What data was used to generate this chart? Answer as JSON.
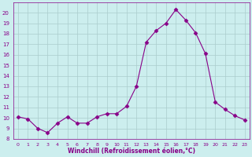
{
  "x": [
    0,
    1,
    2,
    3,
    4,
    5,
    6,
    7,
    8,
    9,
    10,
    11,
    12,
    13,
    14,
    15,
    16,
    17,
    18,
    19,
    20,
    21,
    22,
    23
  ],
  "y": [
    10.1,
    9.9,
    9.0,
    8.6,
    9.5,
    10.1,
    9.5,
    9.5,
    10.1,
    10.4,
    10.4,
    11.1,
    13.0,
    17.2,
    18.3,
    19.0,
    20.3,
    19.3,
    18.1,
    16.1,
    11.5,
    10.8,
    10.2,
    9.8
  ],
  "line_color": "#880088",
  "marker": "D",
  "marker_size": 2.5,
  "bg_color": "#cceeee",
  "grid_color": "#aacccc",
  "xlabel": "Windchill (Refroidissement éolien,°C)",
  "xlim": [
    -0.5,
    23.5
  ],
  "ylim": [
    8,
    21
  ],
  "yticks": [
    8,
    9,
    10,
    11,
    12,
    13,
    14,
    15,
    16,
    17,
    18,
    19,
    20
  ],
  "xticks": [
    0,
    1,
    2,
    3,
    4,
    5,
    6,
    7,
    8,
    9,
    10,
    11,
    12,
    13,
    14,
    15,
    16,
    17,
    18,
    19,
    20,
    21,
    22,
    23
  ],
  "font_color": "#880088"
}
